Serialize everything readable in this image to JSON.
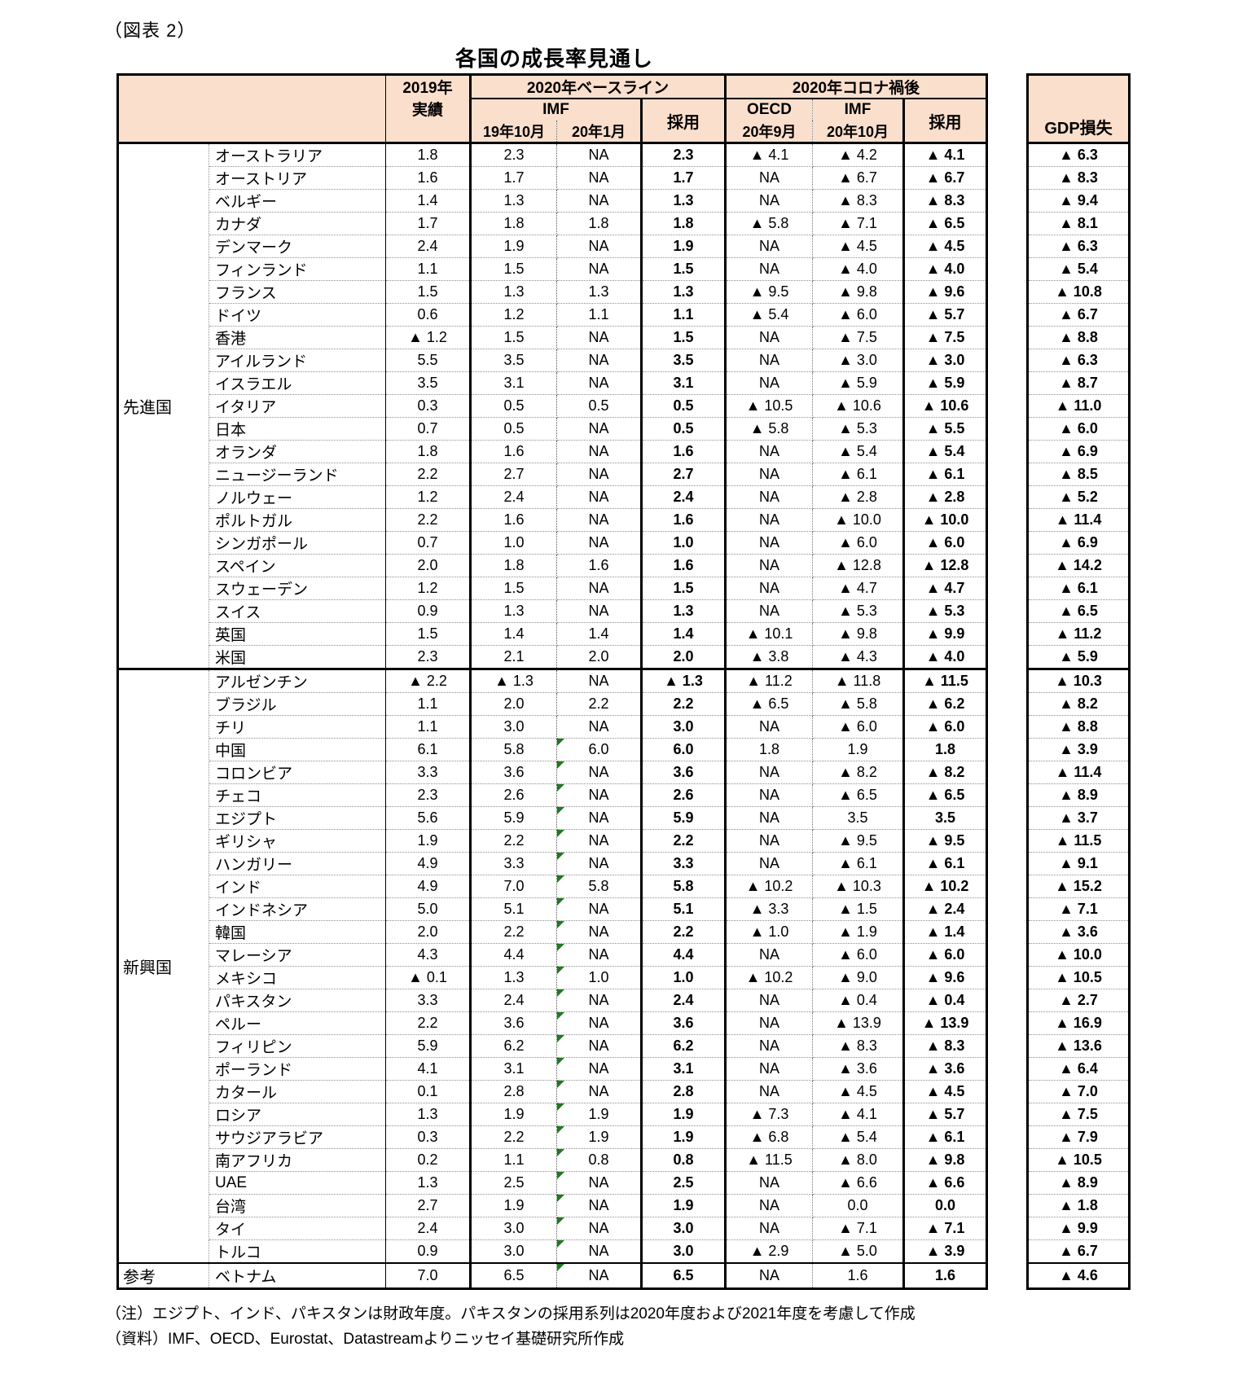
{
  "figure_label": "（図表 2）",
  "title": "各国の成長率見通し",
  "header": {
    "year2019_line1": "2019年",
    "year2019_line2": "実績",
    "baseline_group": "2020年ベースライン",
    "corona_group": "2020年コロナ禍後",
    "imf_label": "IMF",
    "oecd_label": "OECD",
    "sub_oct19": "19年10月",
    "sub_jan20": "20年1月",
    "sub_sep20": "20年9月",
    "sub_oct20": "20年10月",
    "adopted_label": "採用",
    "gdp_loss_label": "GDP損失"
  },
  "colors": {
    "header_bg": "#FBDFCD",
    "flag_marker_green": "#1E7A1E",
    "border": "#000000"
  },
  "groups": [
    {
      "label": "先進国",
      "rows": [
        {
          "country": "オーストラリア",
          "actual_2019": "1.8",
          "imf_oct19": "2.3",
          "imf_jan20": "NA",
          "adopted_baseline": "2.3",
          "oecd_sep20": "▲ 4.1",
          "imf_oct20": "▲ 4.2",
          "adopted_corona": "▲ 4.1",
          "gdp_loss": "▲ 6.3",
          "flag": false
        },
        {
          "country": "オーストリア",
          "actual_2019": "1.6",
          "imf_oct19": "1.7",
          "imf_jan20": "NA",
          "adopted_baseline": "1.7",
          "oecd_sep20": "NA",
          "imf_oct20": "▲ 6.7",
          "adopted_corona": "▲ 6.7",
          "gdp_loss": "▲ 8.3",
          "flag": false
        },
        {
          "country": "ベルギー",
          "actual_2019": "1.4",
          "imf_oct19": "1.3",
          "imf_jan20": "NA",
          "adopted_baseline": "1.3",
          "oecd_sep20": "NA",
          "imf_oct20": "▲ 8.3",
          "adopted_corona": "▲ 8.3",
          "gdp_loss": "▲ 9.4",
          "flag": false
        },
        {
          "country": "カナダ",
          "actual_2019": "1.7",
          "imf_oct19": "1.8",
          "imf_jan20": "1.8",
          "adopted_baseline": "1.8",
          "oecd_sep20": "▲ 5.8",
          "imf_oct20": "▲ 7.1",
          "adopted_corona": "▲ 6.5",
          "gdp_loss": "▲ 8.1",
          "flag": false
        },
        {
          "country": "デンマーク",
          "actual_2019": "2.4",
          "imf_oct19": "1.9",
          "imf_jan20": "NA",
          "adopted_baseline": "1.9",
          "oecd_sep20": "NA",
          "imf_oct20": "▲ 4.5",
          "adopted_corona": "▲ 4.5",
          "gdp_loss": "▲ 6.3",
          "flag": false
        },
        {
          "country": "フィンランド",
          "actual_2019": "1.1",
          "imf_oct19": "1.5",
          "imf_jan20": "NA",
          "adopted_baseline": "1.5",
          "oecd_sep20": "NA",
          "imf_oct20": "▲ 4.0",
          "adopted_corona": "▲ 4.0",
          "gdp_loss": "▲ 5.4",
          "flag": false
        },
        {
          "country": "フランス",
          "actual_2019": "1.5",
          "imf_oct19": "1.3",
          "imf_jan20": "1.3",
          "adopted_baseline": "1.3",
          "oecd_sep20": "▲ 9.5",
          "imf_oct20": "▲ 9.8",
          "adopted_corona": "▲ 9.6",
          "gdp_loss": "▲ 10.8",
          "flag": false
        },
        {
          "country": "ドイツ",
          "actual_2019": "0.6",
          "imf_oct19": "1.2",
          "imf_jan20": "1.1",
          "adopted_baseline": "1.1",
          "oecd_sep20": "▲ 5.4",
          "imf_oct20": "▲ 6.0",
          "adopted_corona": "▲ 5.7",
          "gdp_loss": "▲ 6.7",
          "flag": false
        },
        {
          "country": "香港",
          "actual_2019": "▲ 1.2",
          "imf_oct19": "1.5",
          "imf_jan20": "NA",
          "adopted_baseline": "1.5",
          "oecd_sep20": "NA",
          "imf_oct20": "▲ 7.5",
          "adopted_corona": "▲ 7.5",
          "gdp_loss": "▲ 8.8",
          "flag": false
        },
        {
          "country": "アイルランド",
          "actual_2019": "5.5",
          "imf_oct19": "3.5",
          "imf_jan20": "NA",
          "adopted_baseline": "3.5",
          "oecd_sep20": "NA",
          "imf_oct20": "▲ 3.0",
          "adopted_corona": "▲ 3.0",
          "gdp_loss": "▲ 6.3",
          "flag": false
        },
        {
          "country": "イスラエル",
          "actual_2019": "3.5",
          "imf_oct19": "3.1",
          "imf_jan20": "NA",
          "adopted_baseline": "3.1",
          "oecd_sep20": "NA",
          "imf_oct20": "▲ 5.9",
          "adopted_corona": "▲ 5.9",
          "gdp_loss": "▲ 8.7",
          "flag": false
        },
        {
          "country": "イタリア",
          "actual_2019": "0.3",
          "imf_oct19": "0.5",
          "imf_jan20": "0.5",
          "adopted_baseline": "0.5",
          "oecd_sep20": "▲ 10.5",
          "imf_oct20": "▲ 10.6",
          "adopted_corona": "▲ 10.6",
          "gdp_loss": "▲ 11.0",
          "flag": false
        },
        {
          "country": "日本",
          "actual_2019": "0.7",
          "imf_oct19": "0.5",
          "imf_jan20": "NA",
          "adopted_baseline": "0.5",
          "oecd_sep20": "▲ 5.8",
          "imf_oct20": "▲ 5.3",
          "adopted_corona": "▲ 5.5",
          "gdp_loss": "▲ 6.0",
          "flag": false
        },
        {
          "country": "オランダ",
          "actual_2019": "1.8",
          "imf_oct19": "1.6",
          "imf_jan20": "NA",
          "adopted_baseline": "1.6",
          "oecd_sep20": "NA",
          "imf_oct20": "▲ 5.4",
          "adopted_corona": "▲ 5.4",
          "gdp_loss": "▲ 6.9",
          "flag": false
        },
        {
          "country": "ニュージーランド",
          "actual_2019": "2.2",
          "imf_oct19": "2.7",
          "imf_jan20": "NA",
          "adopted_baseline": "2.7",
          "oecd_sep20": "NA",
          "imf_oct20": "▲ 6.1",
          "adopted_corona": "▲ 6.1",
          "gdp_loss": "▲ 8.5",
          "flag": false
        },
        {
          "country": "ノルウェー",
          "actual_2019": "1.2",
          "imf_oct19": "2.4",
          "imf_jan20": "NA",
          "adopted_baseline": "2.4",
          "oecd_sep20": "NA",
          "imf_oct20": "▲ 2.8",
          "adopted_corona": "▲ 2.8",
          "gdp_loss": "▲ 5.2",
          "flag": false
        },
        {
          "country": "ポルトガル",
          "actual_2019": "2.2",
          "imf_oct19": "1.6",
          "imf_jan20": "NA",
          "adopted_baseline": "1.6",
          "oecd_sep20": "NA",
          "imf_oct20": "▲ 10.0",
          "adopted_corona": "▲ 10.0",
          "gdp_loss": "▲ 11.4",
          "flag": false
        },
        {
          "country": "シンガポール",
          "actual_2019": "0.7",
          "imf_oct19": "1.0",
          "imf_jan20": "NA",
          "adopted_baseline": "1.0",
          "oecd_sep20": "NA",
          "imf_oct20": "▲ 6.0",
          "adopted_corona": "▲ 6.0",
          "gdp_loss": "▲ 6.9",
          "flag": false
        },
        {
          "country": "スペイン",
          "actual_2019": "2.0",
          "imf_oct19": "1.8",
          "imf_jan20": "1.6",
          "adopted_baseline": "1.6",
          "oecd_sep20": "NA",
          "imf_oct20": "▲ 12.8",
          "adopted_corona": "▲ 12.8",
          "gdp_loss": "▲ 14.2",
          "flag": false
        },
        {
          "country": "スウェーデン",
          "actual_2019": "1.2",
          "imf_oct19": "1.5",
          "imf_jan20": "NA",
          "adopted_baseline": "1.5",
          "oecd_sep20": "NA",
          "imf_oct20": "▲ 4.7",
          "adopted_corona": "▲ 4.7",
          "gdp_loss": "▲ 6.1",
          "flag": false
        },
        {
          "country": "スイス",
          "actual_2019": "0.9",
          "imf_oct19": "1.3",
          "imf_jan20": "NA",
          "adopted_baseline": "1.3",
          "oecd_sep20": "NA",
          "imf_oct20": "▲ 5.3",
          "adopted_corona": "▲ 5.3",
          "gdp_loss": "▲ 6.5",
          "flag": false
        },
        {
          "country": "英国",
          "actual_2019": "1.5",
          "imf_oct19": "1.4",
          "imf_jan20": "1.4",
          "adopted_baseline": "1.4",
          "oecd_sep20": "▲ 10.1",
          "imf_oct20": "▲ 9.8",
          "adopted_corona": "▲ 9.9",
          "gdp_loss": "▲ 11.2",
          "flag": false
        },
        {
          "country": "米国",
          "actual_2019": "2.3",
          "imf_oct19": "2.1",
          "imf_jan20": "2.0",
          "adopted_baseline": "2.0",
          "oecd_sep20": "▲ 3.8",
          "imf_oct20": "▲ 4.3",
          "adopted_corona": "▲ 4.0",
          "gdp_loss": "▲ 5.9",
          "flag": false
        }
      ]
    },
    {
      "label": "新興国",
      "rows": [
        {
          "country": "アルゼンチン",
          "actual_2019": "▲ 2.2",
          "imf_oct19": "▲ 1.3",
          "imf_jan20": "NA",
          "adopted_baseline": "▲ 1.3",
          "oecd_sep20": "▲ 11.2",
          "imf_oct20": "▲ 11.8",
          "adopted_corona": "▲ 11.5",
          "gdp_loss": "▲ 10.3",
          "flag": false
        },
        {
          "country": "ブラジル",
          "actual_2019": "1.1",
          "imf_oct19": "2.0",
          "imf_jan20": "2.2",
          "adopted_baseline": "2.2",
          "oecd_sep20": "▲ 6.5",
          "imf_oct20": "▲ 5.8",
          "adopted_corona": "▲ 6.2",
          "gdp_loss": "▲ 8.2",
          "flag": false
        },
        {
          "country": "チリ",
          "actual_2019": "1.1",
          "imf_oct19": "3.0",
          "imf_jan20": "NA",
          "adopted_baseline": "3.0",
          "oecd_sep20": "NA",
          "imf_oct20": "▲ 6.0",
          "adopted_corona": "▲ 6.0",
          "gdp_loss": "▲ 8.8",
          "flag": false
        },
        {
          "country": "中国",
          "actual_2019": "6.1",
          "imf_oct19": "5.8",
          "imf_jan20": "6.0",
          "adopted_baseline": "6.0",
          "oecd_sep20": "1.8",
          "imf_oct20": "1.9",
          "adopted_corona": "1.8",
          "gdp_loss": "▲ 3.9",
          "flag": true
        },
        {
          "country": "コロンビア",
          "actual_2019": "3.3",
          "imf_oct19": "3.6",
          "imf_jan20": "NA",
          "adopted_baseline": "3.6",
          "oecd_sep20": "NA",
          "imf_oct20": "▲ 8.2",
          "adopted_corona": "▲ 8.2",
          "gdp_loss": "▲ 11.4",
          "flag": true
        },
        {
          "country": "チェコ",
          "actual_2019": "2.3",
          "imf_oct19": "2.6",
          "imf_jan20": "NA",
          "adopted_baseline": "2.6",
          "oecd_sep20": "NA",
          "imf_oct20": "▲ 6.5",
          "adopted_corona": "▲ 6.5",
          "gdp_loss": "▲ 8.9",
          "flag": true
        },
        {
          "country": "エジプト",
          "actual_2019": "5.6",
          "imf_oct19": "5.9",
          "imf_jan20": "NA",
          "adopted_baseline": "5.9",
          "oecd_sep20": "NA",
          "imf_oct20": "3.5",
          "adopted_corona": "3.5",
          "gdp_loss": "▲ 3.7",
          "flag": true
        },
        {
          "country": "ギリシャ",
          "actual_2019": "1.9",
          "imf_oct19": "2.2",
          "imf_jan20": "NA",
          "adopted_baseline": "2.2",
          "oecd_sep20": "NA",
          "imf_oct20": "▲ 9.5",
          "adopted_corona": "▲ 9.5",
          "gdp_loss": "▲ 11.5",
          "flag": true
        },
        {
          "country": "ハンガリー",
          "actual_2019": "4.9",
          "imf_oct19": "3.3",
          "imf_jan20": "NA",
          "adopted_baseline": "3.3",
          "oecd_sep20": "NA",
          "imf_oct20": "▲ 6.1",
          "adopted_corona": "▲ 6.1",
          "gdp_loss": "▲ 9.1",
          "flag": true
        },
        {
          "country": "インド",
          "actual_2019": "4.9",
          "imf_oct19": "7.0",
          "imf_jan20": "5.8",
          "adopted_baseline": "5.8",
          "oecd_sep20": "▲ 10.2",
          "imf_oct20": "▲ 10.3",
          "adopted_corona": "▲ 10.2",
          "gdp_loss": "▲ 15.2",
          "flag": true
        },
        {
          "country": "インドネシア",
          "actual_2019": "5.0",
          "imf_oct19": "5.1",
          "imf_jan20": "NA",
          "adopted_baseline": "5.1",
          "oecd_sep20": "▲ 3.3",
          "imf_oct20": "▲ 1.5",
          "adopted_corona": "▲ 2.4",
          "gdp_loss": "▲ 7.1",
          "flag": true
        },
        {
          "country": "韓国",
          "actual_2019": "2.0",
          "imf_oct19": "2.2",
          "imf_jan20": "NA",
          "adopted_baseline": "2.2",
          "oecd_sep20": "▲ 1.0",
          "imf_oct20": "▲ 1.9",
          "adopted_corona": "▲ 1.4",
          "gdp_loss": "▲ 3.6",
          "flag": true
        },
        {
          "country": "マレーシア",
          "actual_2019": "4.3",
          "imf_oct19": "4.4",
          "imf_jan20": "NA",
          "adopted_baseline": "4.4",
          "oecd_sep20": "NA",
          "imf_oct20": "▲ 6.0",
          "adopted_corona": "▲ 6.0",
          "gdp_loss": "▲ 10.0",
          "flag": true
        },
        {
          "country": "メキシコ",
          "actual_2019": "▲ 0.1",
          "imf_oct19": "1.3",
          "imf_jan20": "1.0",
          "adopted_baseline": "1.0",
          "oecd_sep20": "▲ 10.2",
          "imf_oct20": "▲ 9.0",
          "adopted_corona": "▲ 9.6",
          "gdp_loss": "▲ 10.5",
          "flag": true
        },
        {
          "country": "パキスタン",
          "actual_2019": "3.3",
          "imf_oct19": "2.4",
          "imf_jan20": "NA",
          "adopted_baseline": "2.4",
          "oecd_sep20": "NA",
          "imf_oct20": "▲ 0.4",
          "adopted_corona": "▲ 0.4",
          "gdp_loss": "▲ 2.7",
          "flag": true
        },
        {
          "country": "ペルー",
          "actual_2019": "2.2",
          "imf_oct19": "3.6",
          "imf_jan20": "NA",
          "adopted_baseline": "3.6",
          "oecd_sep20": "NA",
          "imf_oct20": "▲ 13.9",
          "adopted_corona": "▲ 13.9",
          "gdp_loss": "▲ 16.9",
          "flag": true
        },
        {
          "country": "フィリピン",
          "actual_2019": "5.9",
          "imf_oct19": "6.2",
          "imf_jan20": "NA",
          "adopted_baseline": "6.2",
          "oecd_sep20": "NA",
          "imf_oct20": "▲ 8.3",
          "adopted_corona": "▲ 8.3",
          "gdp_loss": "▲ 13.6",
          "flag": true
        },
        {
          "country": "ポーランド",
          "actual_2019": "4.1",
          "imf_oct19": "3.1",
          "imf_jan20": "NA",
          "adopted_baseline": "3.1",
          "oecd_sep20": "NA",
          "imf_oct20": "▲ 3.6",
          "adopted_corona": "▲ 3.6",
          "gdp_loss": "▲ 6.4",
          "flag": true
        },
        {
          "country": "カタール",
          "actual_2019": "0.1",
          "imf_oct19": "2.8",
          "imf_jan20": "NA",
          "adopted_baseline": "2.8",
          "oecd_sep20": "NA",
          "imf_oct20": "▲ 4.5",
          "adopted_corona": "▲ 4.5",
          "gdp_loss": "▲ 7.0",
          "flag": true
        },
        {
          "country": "ロシア",
          "actual_2019": "1.3",
          "imf_oct19": "1.9",
          "imf_jan20": "1.9",
          "adopted_baseline": "1.9",
          "oecd_sep20": "▲ 7.3",
          "imf_oct20": "▲ 4.1",
          "adopted_corona": "▲ 5.7",
          "gdp_loss": "▲ 7.5",
          "flag": true
        },
        {
          "country": "サウジアラビア",
          "actual_2019": "0.3",
          "imf_oct19": "2.2",
          "imf_jan20": "1.9",
          "adopted_baseline": "1.9",
          "oecd_sep20": "▲ 6.8",
          "imf_oct20": "▲ 5.4",
          "adopted_corona": "▲ 6.1",
          "gdp_loss": "▲ 7.9",
          "flag": true
        },
        {
          "country": "南アフリカ",
          "actual_2019": "0.2",
          "imf_oct19": "1.1",
          "imf_jan20": "0.8",
          "adopted_baseline": "0.8",
          "oecd_sep20": "▲ 11.5",
          "imf_oct20": "▲ 8.0",
          "adopted_corona": "▲ 9.8",
          "gdp_loss": "▲ 10.5",
          "flag": true
        },
        {
          "country": "UAE",
          "actual_2019": "1.3",
          "imf_oct19": "2.5",
          "imf_jan20": "NA",
          "adopted_baseline": "2.5",
          "oecd_sep20": "NA",
          "imf_oct20": "▲ 6.6",
          "adopted_corona": "▲ 6.6",
          "gdp_loss": "▲ 8.9",
          "flag": true
        },
        {
          "country": "台湾",
          "actual_2019": "2.7",
          "imf_oct19": "1.9",
          "imf_jan20": "NA",
          "adopted_baseline": "1.9",
          "oecd_sep20": "NA",
          "imf_oct20": "0.0",
          "adopted_corona": "0.0",
          "gdp_loss": "▲ 1.8",
          "flag": true
        },
        {
          "country": "タイ",
          "actual_2019": "2.4",
          "imf_oct19": "3.0",
          "imf_jan20": "NA",
          "adopted_baseline": "3.0",
          "oecd_sep20": "NA",
          "imf_oct20": "▲ 7.1",
          "adopted_corona": "▲ 7.1",
          "gdp_loss": "▲ 9.9",
          "flag": true
        },
        {
          "country": "トルコ",
          "actual_2019": "0.9",
          "imf_oct19": "3.0",
          "imf_jan20": "NA",
          "adopted_baseline": "3.0",
          "oecd_sep20": "▲ 2.9",
          "imf_oct20": "▲ 5.0",
          "adopted_corona": "▲ 3.9",
          "gdp_loss": "▲ 6.7",
          "flag": true
        }
      ]
    },
    {
      "label": "参考",
      "rows": [
        {
          "country": "ベトナム",
          "actual_2019": "7.0",
          "imf_oct19": "6.5",
          "imf_jan20": "NA",
          "adopted_baseline": "6.5",
          "oecd_sep20": "NA",
          "imf_oct20": "1.6",
          "adopted_corona": "1.6",
          "gdp_loss": "▲ 4.6",
          "flag": true
        }
      ]
    }
  ],
  "notes": [
    "（注）エジプト、インド、パキスタンは財政年度。パキスタンの採用系列は2020年度および2021年度を考慮して作成",
    "（資料）IMF、OECD、Eurostat、Datastreamよりニッセイ基礎研究所作成"
  ]
}
